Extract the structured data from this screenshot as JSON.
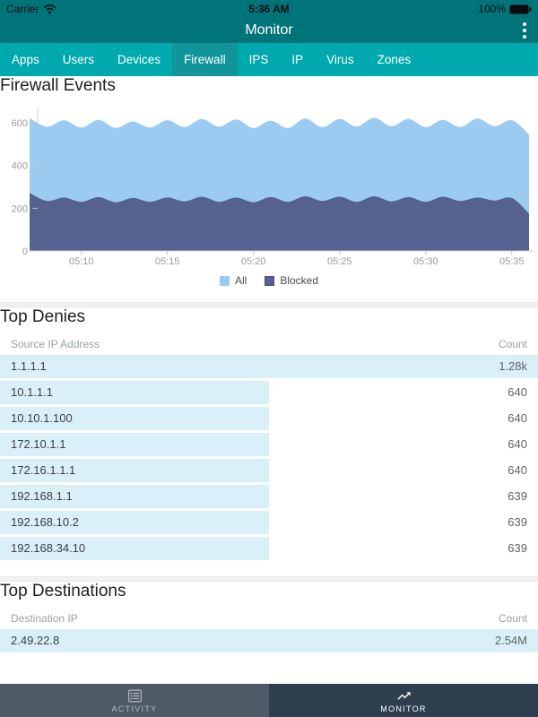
{
  "status_bar": {
    "carrier": "Carrier",
    "time": "5:36 AM",
    "battery_pct": "100%"
  },
  "nav_bar": {
    "title": "Monitor"
  },
  "tab_strip": {
    "active": "Firewall",
    "items": [
      "Apps",
      "Users",
      "Devices",
      "Firewall",
      "IPS",
      "IP",
      "Virus",
      "Zones"
    ]
  },
  "sections": {
    "firewall_events": {
      "title": "Firewall Events"
    },
    "top_denies": {
      "title": "Top Denies",
      "col_left": "Source IP Address",
      "col_right": "Count",
      "rows": [
        {
          "ip": "1.1.1.1",
          "count": "1.28k",
          "bar_pct": 100
        },
        {
          "ip": "10.1.1.1",
          "count": "640",
          "bar_pct": 50
        },
        {
          "ip": "10.10.1.100",
          "count": "640",
          "bar_pct": 50
        },
        {
          "ip": "172.10.1.1",
          "count": "640",
          "bar_pct": 50
        },
        {
          "ip": "172.16.1.1.1",
          "count": "640",
          "bar_pct": 50
        },
        {
          "ip": "192.168.1.1",
          "count": "639",
          "bar_pct": 50
        },
        {
          "ip": "192.168.10.2",
          "count": "639",
          "bar_pct": 50
        },
        {
          "ip": "192.168.34.10",
          "count": "639",
          "bar_pct": 50
        }
      ]
    },
    "top_destinations": {
      "title": "Top Destinations",
      "col_left": "Destination IP",
      "col_right": "Count",
      "rows": [
        {
          "ip": "2.49.22.8",
          "count": "2.54M",
          "bar_pct": 100
        }
      ]
    }
  },
  "chart_data": {
    "type": "area",
    "title": "Firewall Events",
    "stacked": false,
    "grid": false,
    "legend_position": "bottom",
    "xlabel": "",
    "ylabel": "",
    "ylim": [
      0,
      625
    ],
    "yticks": [
      0,
      200,
      400,
      600
    ],
    "xticks": [
      "05:10",
      "05:15",
      "05:20",
      "05:25",
      "05:30",
      "05:35"
    ],
    "x": [
      "05:07",
      "05:08",
      "05:09",
      "05:10",
      "05:11",
      "05:12",
      "05:13",
      "05:14",
      "05:15",
      "05:16",
      "05:17",
      "05:18",
      "05:19",
      "05:20",
      "05:21",
      "05:22",
      "05:23",
      "05:24",
      "05:25",
      "05:26",
      "05:27",
      "05:28",
      "05:29",
      "05:30",
      "05:31",
      "05:32",
      "05:33",
      "05:34",
      "05:35",
      "05:36"
    ],
    "series": [
      {
        "name": "All",
        "color": "#9CCBF2",
        "values": [
          622,
          582,
          612,
          578,
          614,
          576,
          606,
          578,
          612,
          580,
          618,
          582,
          616,
          576,
          610,
          576,
          620,
          580,
          618,
          582,
          624,
          584,
          618,
          580,
          614,
          580,
          620,
          584,
          612,
          545
        ]
      },
      {
        "name": "Blocked",
        "color": "#55618F",
        "values": [
          272,
          234,
          250,
          230,
          252,
          228,
          248,
          230,
          250,
          232,
          254,
          230,
          250,
          228,
          252,
          230,
          256,
          234,
          254,
          230,
          256,
          232,
          252,
          230,
          254,
          234,
          250,
          236,
          248,
          175
        ]
      }
    ]
  },
  "footer": {
    "active": "MONITOR",
    "tabs": [
      {
        "label": "ACTIVITY",
        "icon": "list-icon"
      },
      {
        "label": "MONITOR",
        "icon": "trending-up-icon"
      }
    ]
  },
  "colors": {
    "header_teal": "#007479",
    "tab_bar_teal": "#00A9AE",
    "tab_active_teal": "#10959B",
    "row_bar_cyan": "#DAF0F8",
    "footer_left": "#4E5B66",
    "footer_right": "#2E3E4E",
    "series_all": "#9CCBF2",
    "series_blocked": "#55618F"
  }
}
